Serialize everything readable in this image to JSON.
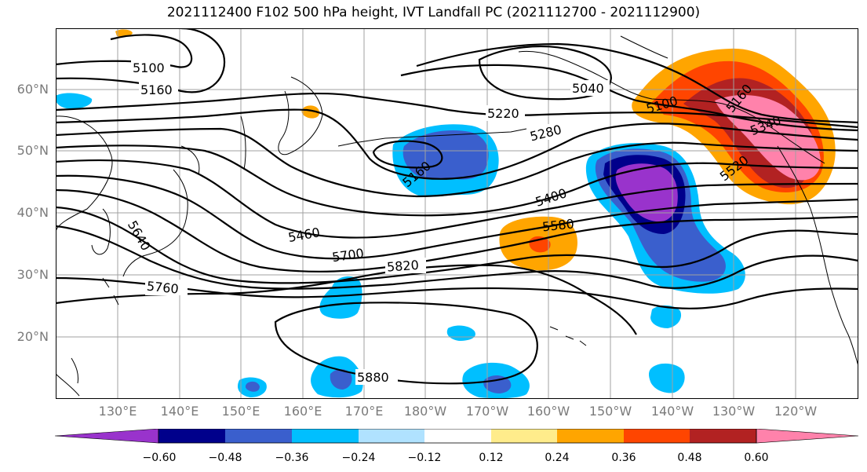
{
  "title": "2021112400 F102 500 hPa height, IVT Landfall PC (2021112700 - 2021112900)",
  "lat_labels": [
    "60°N",
    "50°N",
    "40°N",
    "30°N",
    "20°N"
  ],
  "lon_labels": [
    "130°E",
    "140°E",
    "150°E",
    "160°E",
    "170°E",
    "180°W",
    "170°W",
    "160°W",
    "150°W",
    "140°W",
    "130°W",
    "120°W"
  ],
  "colorbar": {
    "ticks": [
      "−0.60",
      "−0.48",
      "−0.36",
      "−0.24",
      "−0.12",
      "0.12",
      "0.24",
      "0.36",
      "0.48",
      "0.60"
    ],
    "colors": [
      "#9933cc",
      "#00008b",
      "#3a5fcd",
      "#00bfff",
      "#b0e2ff",
      "#ffffff",
      "#ffec8b",
      "#ffa500",
      "#ff4500",
      "#b22222",
      "#ff82ab"
    ]
  },
  "contour_labels": [
    "5100",
    "5160",
    "5040",
    "5220",
    "5280",
    "5160",
    "5100",
    "5160",
    "5340",
    "5520",
    "5400",
    "5580",
    "5460",
    "5700",
    "5820",
    "5640",
    "5760",
    "5880"
  ],
  "colors": {
    "contour": "#000000",
    "grid": "#a0a0a0",
    "coast": "#000000",
    "axis_label": "#7a7a7a"
  }
}
